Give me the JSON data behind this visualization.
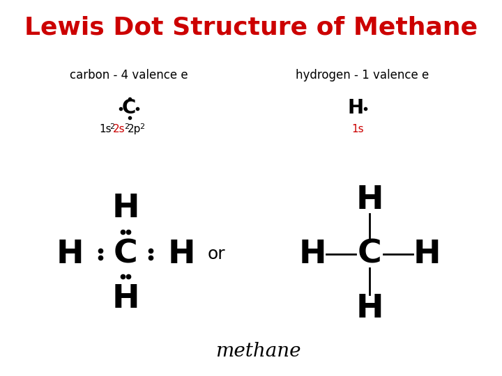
{
  "title": "Lewis Dot Structure of Methane",
  "title_color": "#cc0000",
  "title_fontsize": 26,
  "title_fontweight": "bold",
  "bg_color": "#ffffff",
  "text_color": "#000000",
  "red_color": "#cc0000",
  "carbon_label": "carbon - 4 valence e",
  "hydrogen_label": "hydrogen - 1 valence e",
  "methane_label": "methane",
  "or_label": "or",
  "figsize": [
    7.2,
    5.4
  ],
  "dpi": 100
}
